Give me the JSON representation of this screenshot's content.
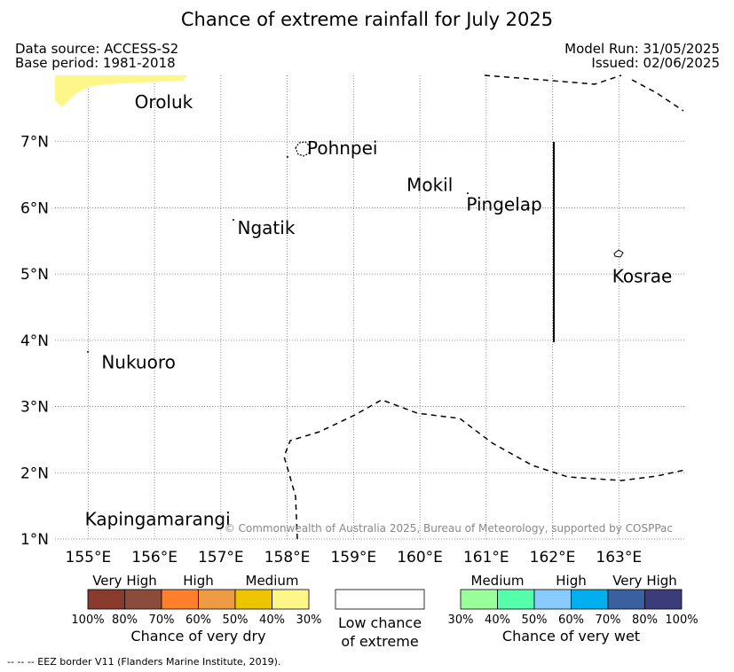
{
  "title": "Chance of extreme rainfall for July 2025",
  "data_source": "Data source: ACCESS-S2",
  "base_period": "Base period: 1981-2018",
  "model_run": "Model Run: 31/05/2025",
  "issued": "Issued: 02/06/2025",
  "map": {
    "lon_ticks": [
      "155°E",
      "156°E",
      "157°E",
      "158°E",
      "159°E",
      "160°E",
      "161°E",
      "162°E",
      "163°E"
    ],
    "lat_ticks": [
      "1°N",
      "2°N",
      "3°N",
      "4°N",
      "5°N",
      "6°N",
      "7°N"
    ],
    "lon_values": [
      155,
      156,
      157,
      158,
      159,
      160,
      161,
      162,
      163
    ],
    "lat_values": [
      1,
      2,
      3,
      4,
      5,
      6,
      7
    ],
    "lon_range": [
      154.5,
      164.0
    ],
    "lat_range": [
      1.0,
      8.0
    ],
    "grid": true,
    "places": [
      {
        "name": "Oroluk",
        "lon": 155.7,
        "lat": 7.6
      },
      {
        "name": "Pohnpei",
        "lon": 158.3,
        "lat": 6.9
      },
      {
        "name": "Mokil",
        "lon": 159.8,
        "lat": 6.35
      },
      {
        "name": "Pingelap",
        "lon": 160.7,
        "lat": 6.05
      },
      {
        "name": "Ngatik",
        "lon": 157.25,
        "lat": 5.7
      },
      {
        "name": "Kosrae",
        "lon": 162.9,
        "lat": 4.97
      },
      {
        "name": "Nukuoro",
        "lon": 155.2,
        "lat": 3.67
      },
      {
        "name": "Kapingamarangi",
        "lon": 154.95,
        "lat": 1.3
      }
    ],
    "copyright": "© Commonwealth of Australia 2025, Bureau of Meteorology, supported by COSPPac"
  },
  "legend": {
    "dry": {
      "headers": [
        "Very High",
        "High",
        "Medium"
      ],
      "colors": [
        "#8b3a2e",
        "#8b4c3c",
        "#ff7f2a",
        "#ee9944",
        "#eec400",
        "#fff68a"
      ],
      "ticks": [
        "100%",
        "80%",
        "70%",
        "60%",
        "50%",
        "40%",
        "30%"
      ],
      "caption": "Chance of very dry"
    },
    "low": {
      "caption_line1": "Low chance",
      "caption_line2": "of extreme"
    },
    "wet": {
      "headers": [
        "Medium",
        "High",
        "Very High"
      ],
      "colors": [
        "#99ff99",
        "#55ffaa",
        "#88ccff",
        "#00b0ee",
        "#3a60a0",
        "#3c3c7a"
      ],
      "ticks": [
        "30%",
        "40%",
        "50%",
        "60%",
        "70%",
        "80%",
        "100%"
      ],
      "caption": "Chance of very wet"
    }
  },
  "footnote": "--  --  -- EEZ border V11 (Flanders Marine Institute, 2019)."
}
